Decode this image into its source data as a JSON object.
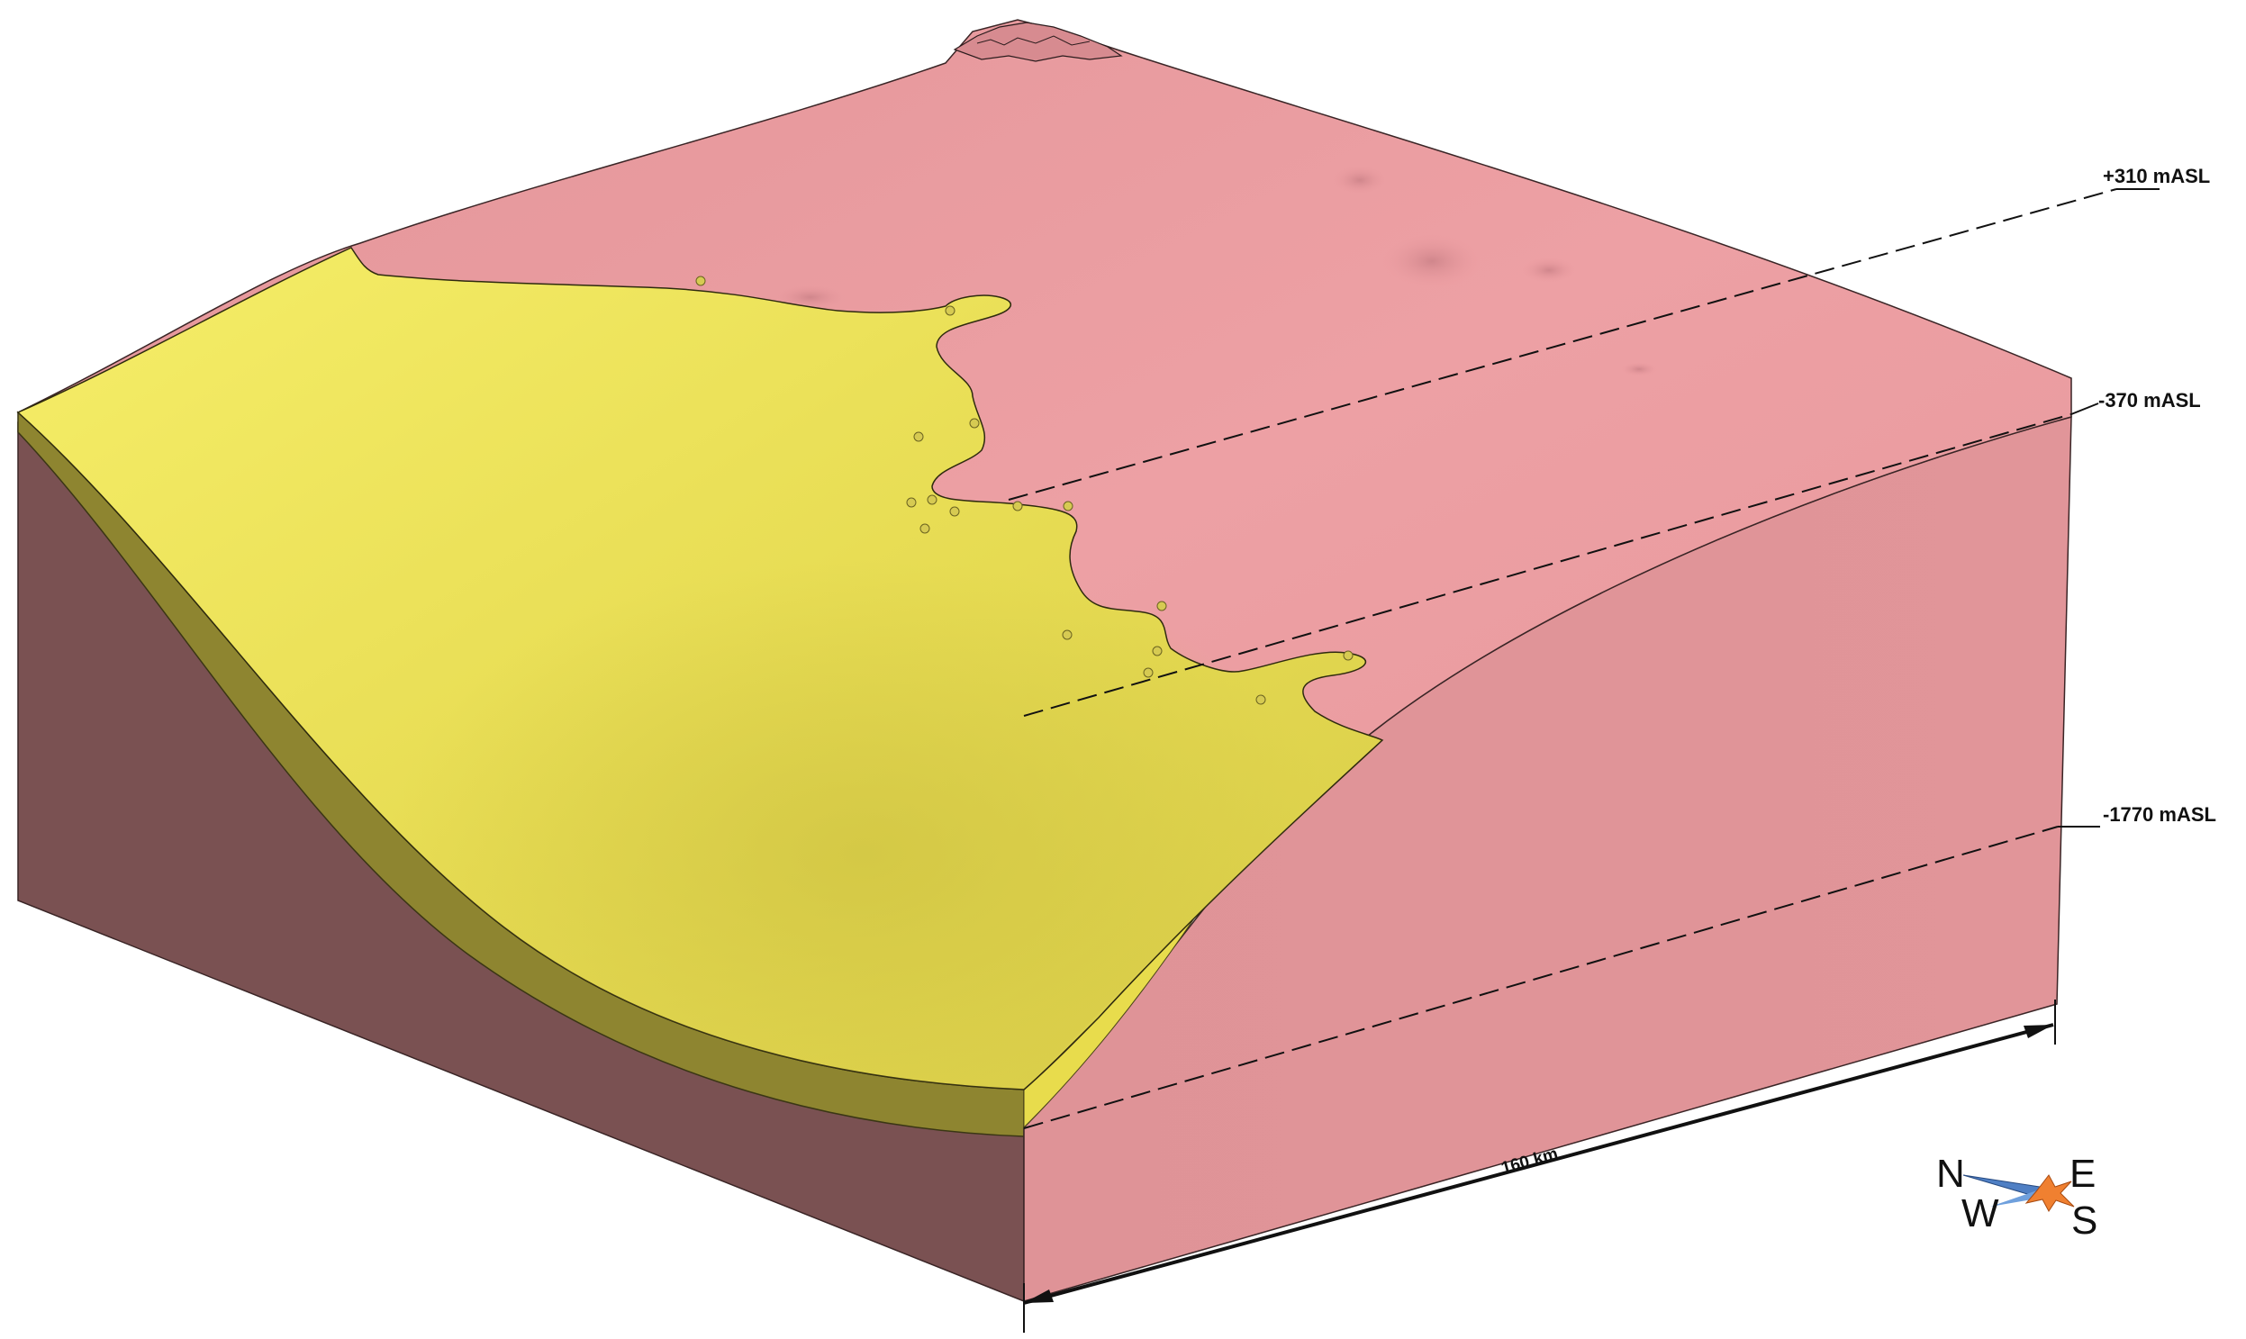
{
  "diagram": {
    "elevation_labels": {
      "top": "+310 mASL",
      "middle": "-370 mASL",
      "bottom": "-1770 mASL"
    },
    "scale_bar": {
      "label": "160 km"
    },
    "compass": {
      "north": "N",
      "east": "E",
      "south": "S",
      "west": "W"
    },
    "colors": {
      "pink_unit": "#e9999e",
      "pink_unit_side": "#e0959a",
      "yellow_unit": "#f0e35a",
      "yellow_unit_side": "#8e8530",
      "basement_front": "#7a5152",
      "compass_blue": "#4f7fc4",
      "compass_orange": "#f08030"
    }
  }
}
